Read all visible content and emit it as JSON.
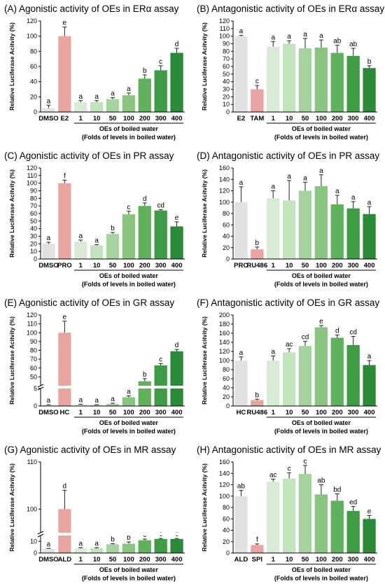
{
  "colors": {
    "control": "#e2e2e2",
    "positive": "#e8a49f",
    "greens": [
      "#d7ebd5",
      "#c3e2be",
      "#a6d39d",
      "#89c57f",
      "#5fb15b",
      "#3e9d44",
      "#2a8a38"
    ],
    "axis": "#000000",
    "error": "#222222"
  },
  "chart_data": [
    {
      "type": "bar",
      "title": "(A) Agonistic activity of OEs in ERα assay",
      "ylabel": "Relative Luciferase Acitvity (%)",
      "ylim": [
        0,
        120
      ],
      "yticks": [
        0,
        20,
        40,
        60,
        80,
        100,
        120
      ],
      "categories": [
        "DMSO",
        "E2",
        "1",
        "10",
        "50",
        "100",
        "200",
        "300",
        "400"
      ],
      "values": [
        5,
        100,
        13,
        13,
        17,
        22,
        44,
        55,
        78
      ],
      "errors": [
        4,
        12,
        2,
        2,
        2,
        3,
        5,
        6,
        6
      ],
      "letters": [
        "a",
        "e",
        "a",
        "a",
        "a",
        "a",
        "b",
        "c",
        "d"
      ],
      "group_label": [
        "OEs of boiled water",
        "(Folds of levels in boiled water)"
      ],
      "group_start": 2
    },
    {
      "type": "bar",
      "title": "(B) Antagonistic activity of OEs in ERα assay",
      "ylabel": "Relative Luciferase Acitvity (%)",
      "ylim": [
        0,
        120
      ],
      "yticks": [
        0,
        10,
        20,
        30,
        40,
        50,
        60,
        70,
        80,
        90,
        100,
        110,
        120
      ],
      "categories": [
        "E2",
        "TAM",
        "1",
        "10",
        "50",
        "100",
        "200",
        "300",
        "400"
      ],
      "values": [
        100,
        30,
        86,
        90,
        84,
        85,
        78,
        74,
        58
      ],
      "errors": [
        1,
        5,
        7,
        4,
        13,
        10,
        10,
        10,
        3
      ],
      "letters": [
        "a",
        "c",
        "a",
        "a",
        "a",
        "a",
        "ab",
        "ab",
        "b"
      ],
      "group_label": [
        "OEs of boiled water",
        "(Folds of levels in boiled water)"
      ],
      "group_start": 2
    },
    {
      "type": "bar",
      "title": "(C) Agonistic activity of OEs in PR assay",
      "ylabel": "Relative Luciferase Acitvity (%)",
      "ylim": [
        0,
        120
      ],
      "yticks": [
        0,
        10,
        20,
        30,
        40,
        50,
        60,
        70,
        80,
        90,
        100,
        110,
        120
      ],
      "categories": [
        "DMSO",
        "PRO",
        "1",
        "10",
        "50",
        "100",
        "200",
        "300",
        "400"
      ],
      "values": [
        20,
        100,
        23,
        18,
        33,
        59,
        70,
        64,
        43
      ],
      "errors": [
        2,
        4,
        2,
        1,
        2,
        4,
        4,
        1,
        6
      ],
      "letters": [
        "a",
        "f",
        "a",
        "a",
        "b",
        "c",
        "d",
        "cd",
        "e"
      ],
      "group_label": [
        "OEs of boiled water",
        "(Folds of levels in boiled water)"
      ],
      "group_start": 2
    },
    {
      "type": "bar",
      "title": "(D) Antagonistic activity of OEs in PR assay",
      "ylabel": "Relative Luciferase Acitvity (%)",
      "ylim": [
        0,
        160
      ],
      "yticks": [
        0,
        20,
        40,
        60,
        80,
        100,
        120,
        140,
        160
      ],
      "categories": [
        "PRO",
        "RU486",
        "1",
        "10",
        "50",
        "100",
        "200",
        "300",
        "400"
      ],
      "values": [
        100,
        17,
        107,
        103,
        120,
        128,
        96,
        89,
        79
      ],
      "errors": [
        27,
        4,
        13,
        35,
        15,
        20,
        16,
        12,
        13
      ],
      "letters": [
        "a",
        "b",
        "a",
        "a",
        "a",
        "a",
        "a",
        "a",
        "a"
      ],
      "group_label": [
        "OEs of boiled water",
        "(Folds of levels in boiled water)"
      ],
      "group_start": 2
    },
    {
      "type": "bar",
      "title": "(E) Agonistic activity of OEs in GR assay",
      "ylabel": "Relative Luciferase Acitvity (%)",
      "broken_axis": {
        "lower": [
          0,
          5
        ],
        "upper": [
          40,
          120
        ]
      },
      "yticks_lower": [
        0,
        5
      ],
      "yticks_upper": [
        50,
        60,
        70,
        80,
        90,
        100,
        110,
        120
      ],
      "categories": [
        "DMSO",
        "HC",
        "1",
        "10",
        "50",
        "100",
        "200",
        "300",
        "400"
      ],
      "values": [
        0.3,
        100,
        0.4,
        0.3,
        0.6,
        2.5,
        45,
        63,
        79
      ],
      "errors": [
        0.1,
        13,
        0.1,
        0.1,
        0.2,
        0.4,
        3,
        2,
        2
      ],
      "letters": [
        "a",
        "e",
        "a",
        "a",
        "a",
        "a",
        "b",
        "c",
        "d"
      ],
      "group_label": [
        "OEs of boiled water",
        "(Folds of levels in boiled water)"
      ],
      "group_start": 2
    },
    {
      "type": "bar",
      "title": "(F) Antagonistic activity of OEs in GR assay",
      "ylabel": "Relative Luciferase Acitvity (%)",
      "ylim": [
        0,
        200
      ],
      "yticks": [
        0,
        20,
        40,
        60,
        80,
        100,
        120,
        140,
        160,
        180,
        200
      ],
      "categories": [
        "HC",
        "RU486",
        "1",
        "10",
        "50",
        "100",
        "200",
        "300",
        "400"
      ],
      "values": [
        100,
        13,
        100,
        118,
        132,
        173,
        150,
        134,
        90
      ],
      "errors": [
        8,
        2,
        10,
        8,
        10,
        4,
        6,
        19,
        10
      ],
      "letters": [
        "a",
        "b",
        "a",
        "ac",
        "cd",
        "e",
        "d",
        "cd",
        "a"
      ],
      "group_label": [
        "OEs of boiled water",
        "(Folds of levels in boiled water)"
      ],
      "group_start": 2
    },
    {
      "type": "bar",
      "title": "(G) Agonistic activity of OEs in MR assay",
      "ylabel": "Relative Luciferase Acitvity (%)",
      "broken_axis": {
        "lower": [
          0,
          15
        ],
        "upper": [
          95,
          110
        ]
      },
      "yticks_lower": [
        0,
        10
      ],
      "yticks_upper": [
        100,
        110
      ],
      "categories": [
        "DMSO",
        "ALD",
        "1",
        "10",
        "50",
        "100",
        "200",
        "300",
        "400"
      ],
      "values": [
        3.5,
        100,
        4,
        4,
        7.5,
        8,
        11,
        12,
        12
      ],
      "errors": [
        0.5,
        4,
        0.5,
        0.5,
        0.5,
        1.5,
        1,
        0.5,
        0.5
      ],
      "letters": [
        "a",
        "d",
        "a",
        "a",
        "b",
        "b",
        "c",
        "c",
        "c"
      ],
      "group_label": [
        "OEs of boiled water",
        "(Folds of levels in boiled water)"
      ],
      "group_start": 2
    },
    {
      "type": "bar",
      "title": "(H) Antagonistic activity of OEs in MR assay",
      "ylabel": "Relative Luciferase Acitvity (%)",
      "ylim": [
        0,
        160
      ],
      "yticks": [
        0,
        20,
        40,
        60,
        80,
        100,
        120,
        140,
        160
      ],
      "categories": [
        "ALD",
        "SPI",
        "1",
        "10",
        "50",
        "100",
        "200",
        "300",
        "400"
      ],
      "values": [
        100,
        14,
        125,
        131,
        139,
        103,
        92,
        74,
        60
      ],
      "errors": [
        10,
        2,
        5,
        10,
        15,
        17,
        12,
        8,
        6
      ],
      "letters": [
        "ab",
        "f",
        "ac",
        "c",
        "c",
        "ab",
        "bd",
        "ed",
        "e"
      ],
      "group_label": [
        "OEs of boiled water",
        "(Folds of levels in boiled water)"
      ],
      "group_start": 2
    }
  ]
}
